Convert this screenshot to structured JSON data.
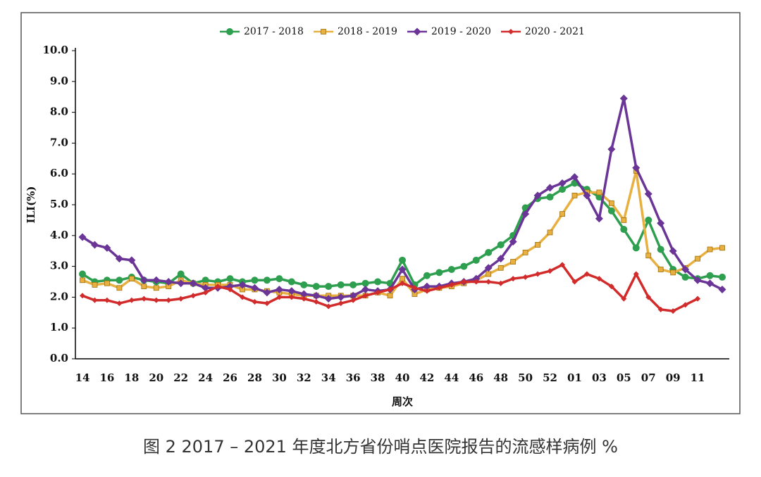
{
  "chart_data": {
    "type": "line",
    "caption": "图 2 2017 – 2021 年度北方省份哨点医院报告的流感样病例 %",
    "xlabel": "周次",
    "ylabel": "ILI(%)",
    "categories": [
      "14",
      null,
      "16",
      null,
      "18",
      null,
      "20",
      null,
      "22",
      null,
      "24",
      null,
      "26",
      null,
      "28",
      null,
      "30",
      null,
      "32",
      null,
      "34",
      null,
      "36",
      null,
      "38",
      null,
      "40",
      null,
      "42",
      null,
      "44",
      null,
      "46",
      null,
      "48",
      null,
      "50",
      null,
      "52",
      null,
      "01",
      null,
      "03",
      null,
      "05",
      null,
      "07",
      null,
      "09",
      null,
      "11",
      null,
      null
    ],
    "ylim": [
      0,
      10
    ],
    "yticks": [
      {
        "value": 0,
        "label": "0.0"
      },
      {
        "value": 1,
        "label": "1.0"
      },
      {
        "value": 2,
        "label": "2.0"
      },
      {
        "value": 3,
        "label": "3.0"
      },
      {
        "value": 4,
        "label": "4.0"
      },
      {
        "value": 5,
        "label": "5.0"
      },
      {
        "value": 6,
        "label": "6.0"
      },
      {
        "value": 7,
        "label": "7.0"
      },
      {
        "value": 8,
        "label": "8.0"
      },
      {
        "value": 9,
        "label": "9.0"
      },
      {
        "value": 10,
        "label": "10.0"
      }
    ],
    "series": [
      {
        "name": "2017 - 2018",
        "color": "#2e9e4f",
        "marker": "circle",
        "values": [
          2.75,
          2.5,
          2.55,
          2.55,
          2.65,
          2.55,
          2.5,
          2.45,
          2.75,
          2.45,
          2.55,
          2.5,
          2.6,
          2.5,
          2.55,
          2.55,
          2.6,
          2.5,
          2.4,
          2.35,
          2.35,
          2.4,
          2.4,
          2.45,
          2.5,
          2.45,
          3.2,
          2.4,
          2.7,
          2.8,
          2.9,
          3.0,
          3.2,
          3.45,
          3.7,
          4.0,
          4.9,
          5.2,
          5.25,
          5.5,
          5.7,
          5.5,
          5.25,
          4.8,
          4.2,
          3.6,
          4.5,
          3.55,
          2.9,
          2.65,
          2.6,
          2.7,
          2.65
        ]
      },
      {
        "name": "2018 - 2019",
        "color": "#e8b040",
        "marker": "square",
        "values": [
          2.55,
          2.4,
          2.45,
          2.3,
          2.6,
          2.35,
          2.3,
          2.35,
          2.55,
          2.45,
          2.4,
          2.4,
          2.4,
          2.25,
          2.25,
          2.2,
          2.15,
          2.1,
          2.05,
          2.05,
          2.05,
          2.05,
          2.05,
          2.05,
          2.15,
          2.05,
          2.6,
          2.1,
          2.25,
          2.3,
          2.35,
          2.45,
          2.55,
          2.75,
          2.95,
          3.15,
          3.45,
          3.7,
          4.1,
          4.7,
          5.3,
          5.4,
          5.4,
          5.05,
          4.5,
          6.1,
          3.35,
          2.9,
          2.8,
          2.95,
          3.25,
          3.55,
          3.6
        ]
      },
      {
        "name": "2019 - 2020",
        "color": "#6a3596",
        "marker": "diamond",
        "values": [
          3.95,
          3.7,
          3.6,
          3.25,
          3.2,
          2.55,
          2.55,
          2.5,
          2.45,
          2.45,
          2.3,
          2.3,
          2.35,
          2.4,
          2.3,
          2.15,
          2.25,
          2.2,
          2.1,
          2.05,
          1.95,
          2.0,
          2.05,
          2.25,
          2.2,
          2.25,
          2.9,
          2.25,
          2.35,
          2.35,
          2.45,
          2.5,
          2.6,
          2.95,
          3.25,
          3.8,
          4.7,
          5.3,
          5.55,
          5.7,
          5.9,
          5.3,
          4.55,
          6.8,
          8.45,
          6.2,
          5.35,
          4.4,
          3.5,
          2.9,
          2.55,
          2.45,
          2.25
        ]
      },
      {
        "name": "2020 - 2021",
        "color": "#d22b2b",
        "marker": "diamond",
        "values": [
          2.05,
          1.9,
          1.9,
          1.8,
          1.9,
          1.95,
          1.9,
          1.9,
          1.95,
          2.05,
          2.15,
          2.35,
          2.25,
          2.0,
          1.85,
          1.8,
          2.0,
          2.0,
          1.95,
          1.85,
          1.7,
          1.8,
          1.9,
          2.05,
          2.15,
          2.25,
          2.45,
          2.3,
          2.2,
          2.3,
          2.4,
          2.5,
          2.5,
          2.5,
          2.45,
          2.6,
          2.65,
          2.75,
          2.85,
          3.05,
          2.5,
          2.75,
          2.6,
          2.35,
          1.95,
          2.75,
          2.0,
          1.6,
          1.55,
          1.75,
          1.95,
          null,
          null
        ]
      }
    ]
  }
}
